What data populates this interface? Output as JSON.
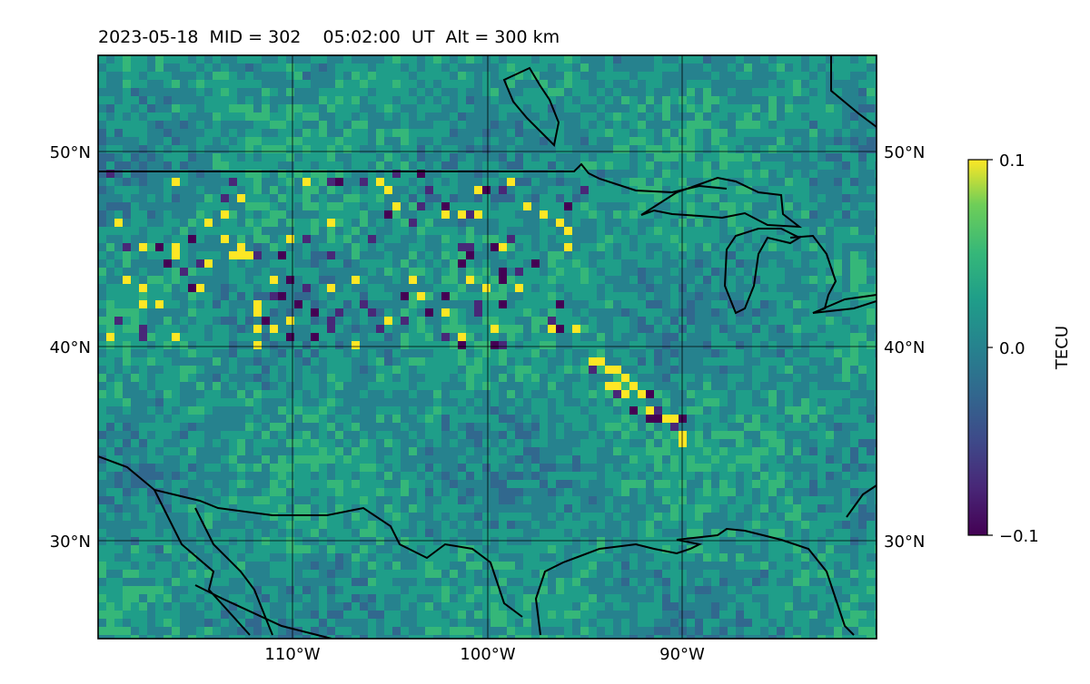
{
  "title": "2023-05-18  MID = 302    05:02:00  UT  Alt = 300 km",
  "map": {
    "lon_range": [
      -120,
      -80
    ],
    "lat_range": [
      25,
      55
    ],
    "lat_gridlines": [
      30,
      40,
      50
    ],
    "lon_gridlines": [
      -110,
      -100,
      -90
    ],
    "lat_tick_labels_left": [
      "30°N",
      "40°N",
      "50°N"
    ],
    "lat_tick_labels_right": [
      "30°N",
      "40°N",
      "50°N"
    ],
    "lon_tick_labels": [
      "110°W",
      "100°W",
      "90°W"
    ],
    "coastline_color": "#000000",
    "colormap": "viridis"
  },
  "colorbar": {
    "label": "TECU",
    "ticks": [
      "0.1",
      "0.0",
      "−0.1"
    ],
    "min": -0.1,
    "max": 0.1
  },
  "colors": {
    "background_field": "#2e8f8c",
    "high": "#fde725",
    "low": "#440154"
  }
}
